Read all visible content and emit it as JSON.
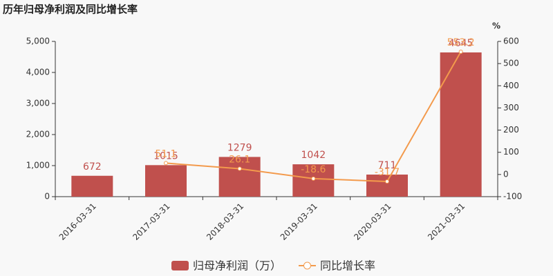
{
  "chart_data": {
    "type": "bar",
    "title": "历年归母净利润及同比增长率",
    "categories": [
      "2016-03-31",
      "2017-03-31",
      "2018-03-31",
      "2019-03-31",
      "2020-03-31",
      "2021-03-31"
    ],
    "series": [
      {
        "name": "归母净利润（万）",
        "type": "bar",
        "color": "#c0504d",
        "values": [
          672,
          1015,
          1279,
          1042,
          711,
          4645
        ]
      },
      {
        "name": "同比增长率",
        "type": "line",
        "axis": "y2",
        "color": "#f39a4c",
        "values": [
          null,
          51.1,
          26.1,
          -18.6,
          -31.7,
          553.2
        ]
      }
    ],
    "ylim": [
      0,
      5000
    ],
    "yticks": [
      0,
      {
        "value": 1000,
        "label": "1,000"
      },
      {
        "value": 2000,
        "label": "2,000"
      },
      {
        "value": 3000,
        "label": "3,000"
      },
      {
        "value": 4000,
        "label": "4,000"
      },
      {
        "value": 5000,
        "label": "5,000"
      }
    ],
    "y2label": "%",
    "y2lim": [
      -100,
      600
    ],
    "y2ticks": [
      -100,
      0,
      100,
      200,
      300,
      400,
      500,
      600
    ]
  }
}
